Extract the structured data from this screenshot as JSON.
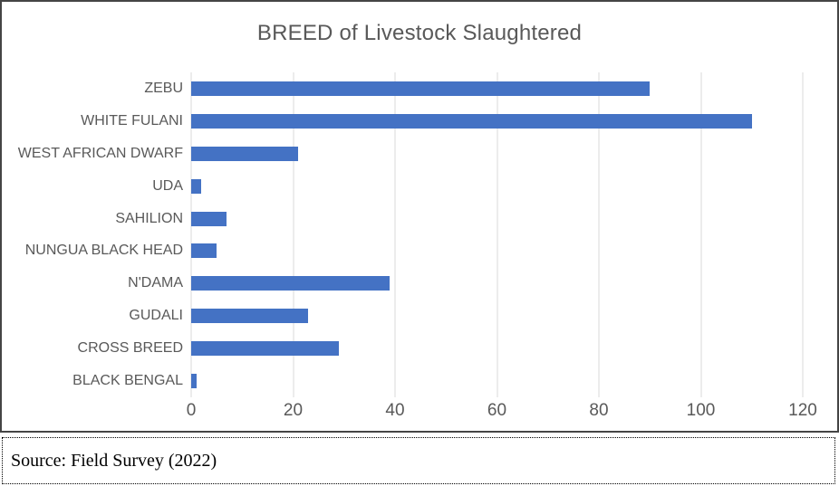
{
  "chart_data": {
    "type": "bar",
    "orientation": "horizontal",
    "title": "BREED of Livestock Slaughtered",
    "categories": [
      "ZEBU",
      "WHITE FULANI",
      "WEST AFRICAN DWARF",
      "UDA",
      "SAHILION",
      "NUNGUA BLACK HEAD",
      "N'DAMA",
      "GUDALI",
      "CROSS BREED",
      "BLACK BENGAL"
    ],
    "values": [
      90,
      110,
      21,
      2,
      7,
      5,
      39,
      23,
      29,
      1
    ],
    "xlabel": "",
    "ylabel": "",
    "xlim": [
      0,
      120
    ],
    "xticks": [
      0,
      20,
      40,
      60,
      80,
      100,
      120
    ],
    "grid": "vertical-only",
    "legend": "none",
    "bar_color": "#4472C4",
    "gridline_color": "#D9D9D9",
    "text_color": "#595959"
  },
  "source": {
    "text": "Source: Field Survey (2022)"
  }
}
